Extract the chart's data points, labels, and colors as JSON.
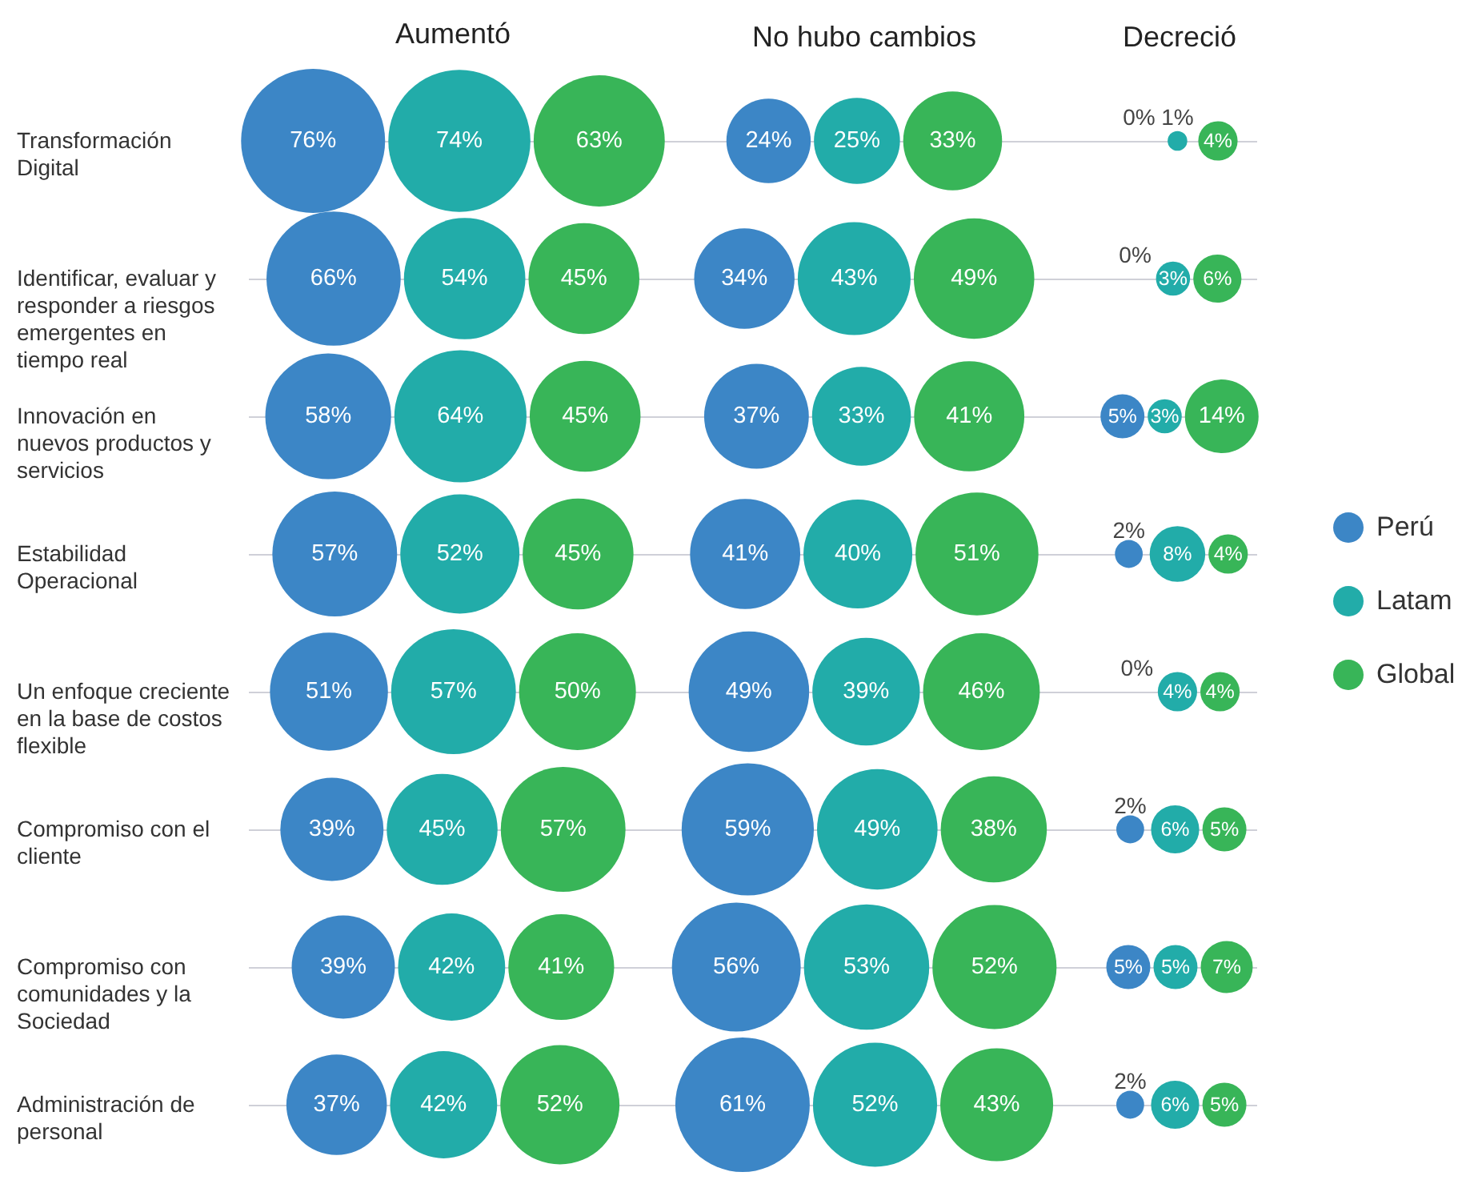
{
  "chart_data": {
    "type": "other",
    "categories": [
      "Transformación Digital",
      "Identificar, evaluar y responder a riesgos emergentes en tiempo real",
      "Innovación en nuevos productos y servicios",
      "Estabilidad Operacional",
      "Un enfoque creciente en la base de costos flexible",
      "Compromiso con el cliente",
      "Compromiso con comunidades y la Sociedad",
      "Administración de personal"
    ],
    "annotations": [
      "Aumentó",
      "No hubo cambios",
      "Decreció"
    ],
    "series": [
      {
        "name": "Perú",
        "color": "#3c86c6",
        "values": [
          76,
          66,
          58,
          57,
          51,
          39,
          39,
          37
        ],
        "value_labels": [
          "76%",
          "66%",
          "58%",
          "57%",
          "51%",
          "39%",
          "39%",
          "37%"
        ]
      },
      {
        "name": "Latam",
        "color": "#22aca9",
        "values": [
          74,
          54,
          64,
          52,
          57,
          45,
          42,
          42
        ],
        "value_labels": [
          "74%",
          "54%",
          "64%",
          "52%",
          "57%",
          "45%",
          "42%",
          "42%"
        ]
      },
      {
        "name": "Global",
        "color": "#38b558",
        "values": [
          63,
          45,
          45,
          45,
          50,
          57,
          41,
          52
        ],
        "value_labels": [
          "63%",
          "45%",
          "45%",
          "45%",
          "50%",
          "57%",
          "41%",
          "52%"
        ]
      },
      {
        "color": "#3c86c6",
        "values": [
          24,
          34,
          37,
          41,
          49,
          59,
          56,
          61
        ],
        "value_labels": [
          "24%",
          "34%",
          "37%",
          "41%",
          "49%",
          "59%",
          "56%",
          "61%"
        ]
      },
      {
        "color": "#22aca9",
        "values": [
          25,
          43,
          33,
          40,
          39,
          49,
          53,
          52
        ],
        "value_labels": [
          "25%",
          "43%",
          "33%",
          "40%",
          "39%",
          "49%",
          "53%",
          "52%"
        ]
      },
      {
        "color": "#38b558",
        "values": [
          33,
          49,
          41,
          51,
          46,
          38,
          52,
          43
        ],
        "value_labels": [
          "33%",
          "49%",
          "41%",
          "51%",
          "46%",
          "38%",
          "52%",
          "43%"
        ]
      },
      {
        "color": "#3c86c6",
        "values": [
          0,
          0,
          5,
          2,
          0,
          2,
          5,
          2
        ],
        "value_labels": [
          "0%",
          "0%",
          "5%",
          "2%",
          "0%",
          "2%",
          "5%",
          "2%"
        ]
      },
      {
        "color": "#22aca9",
        "values": [
          1,
          3,
          3,
          8,
          4,
          6,
          5,
          6
        ],
        "value_labels": [
          "1%",
          "3%",
          "3%",
          "8%",
          "4%",
          "6%",
          "5%",
          "6%"
        ]
      },
      {
        "color": "#38b558",
        "values": [
          4,
          6,
          14,
          4,
          4,
          5,
          7,
          5
        ],
        "value_labels": [
          "4%",
          "6%",
          "14%",
          "4%",
          "4%",
          "5%",
          "7%",
          "5%"
        ]
      }
    ],
    "legend": "right"
  }
}
